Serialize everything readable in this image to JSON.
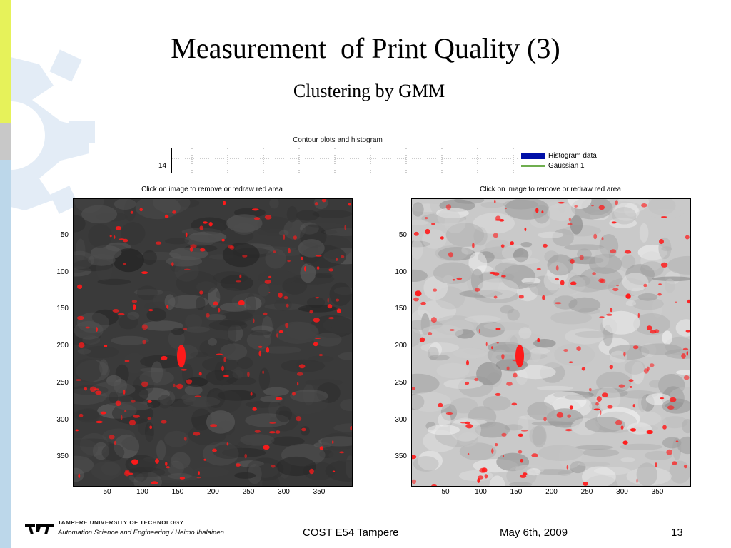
{
  "slide": {
    "title": "Measurement  of Print Quality (3)",
    "subtitle": "Clustering by GMM"
  },
  "contour_figure": {
    "title": "Contour plots and histogram",
    "ytick": "14",
    "legend": [
      {
        "label": "Histogram data",
        "color": "#0010a8"
      },
      {
        "label": "Gaussian 1",
        "color": "#6fae4f"
      }
    ]
  },
  "panels": [
    {
      "title": "Click on image to remove or redraw red area",
      "yticks": [
        "50",
        "100",
        "150",
        "200",
        "250",
        "300",
        "350"
      ],
      "xticks": [
        "50",
        "100",
        "150",
        "200",
        "250",
        "300",
        "350"
      ],
      "background": "#3a3a3a",
      "highlight_color": "#ff1a1a"
    },
    {
      "title": "Click on image to remove or redraw red area",
      "yticks": [
        "50",
        "100",
        "150",
        "200",
        "250",
        "300",
        "350"
      ],
      "xticks": [
        "50",
        "100",
        "150",
        "200",
        "250",
        "300",
        "350"
      ],
      "background": "#c9c9c9",
      "highlight_color": "#ff1a1a"
    }
  ],
  "footer": {
    "university": "TAMPERE UNIVERSITY OF TECHNOLOGY",
    "department": "Automation Science and Engineering / Heimo Ihalainen",
    "event": "COST E54 Tampere",
    "date": "May 6th, 2009",
    "page": "13"
  }
}
